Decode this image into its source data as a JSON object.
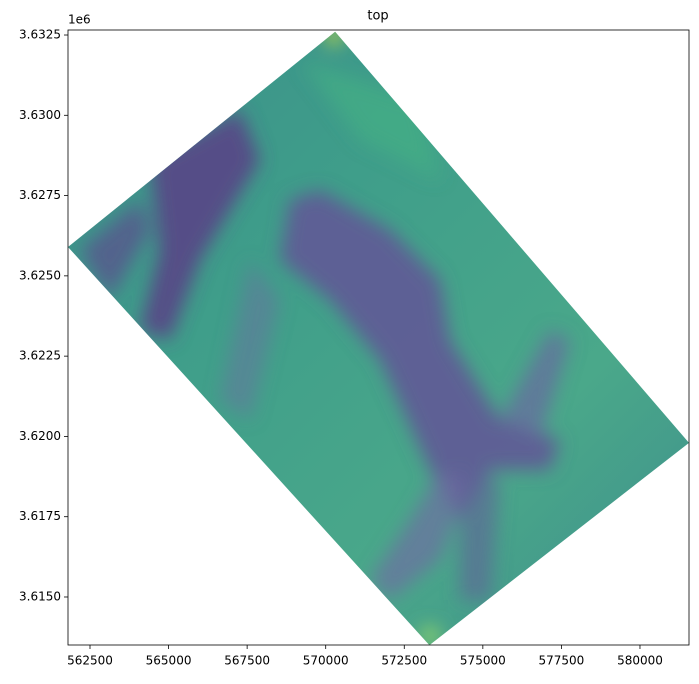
{
  "chart_data": {
    "type": "mesh",
    "title": "top",
    "y_offset_text": "1e6",
    "outline": {
      "x": [
        570300,
        581560,
        573300,
        561800,
        570300
      ],
      "y": [
        3632600,
        3619800,
        3613500,
        3625900,
        3632600
      ]
    },
    "xlim": [
      561800,
      581560
    ],
    "ylim": [
      3613505,
      3632656
    ],
    "xticks": [
      562500,
      565000,
      567500,
      570000,
      572500,
      575000,
      577500,
      580000
    ],
    "yticks": [
      {
        "value": 3615000,
        "label": "3.6150"
      },
      {
        "value": 3617500,
        "label": "3.6175"
      },
      {
        "value": 3620000,
        "label": "3.6200"
      },
      {
        "value": 3622500,
        "label": "3.6225"
      },
      {
        "value": 3625000,
        "label": "3.6250"
      },
      {
        "value": 3627500,
        "label": "3.6275"
      },
      {
        "value": 3630000,
        "label": "3.6300"
      },
      {
        "value": 3632500,
        "label": "3.6325"
      }
    ]
  }
}
